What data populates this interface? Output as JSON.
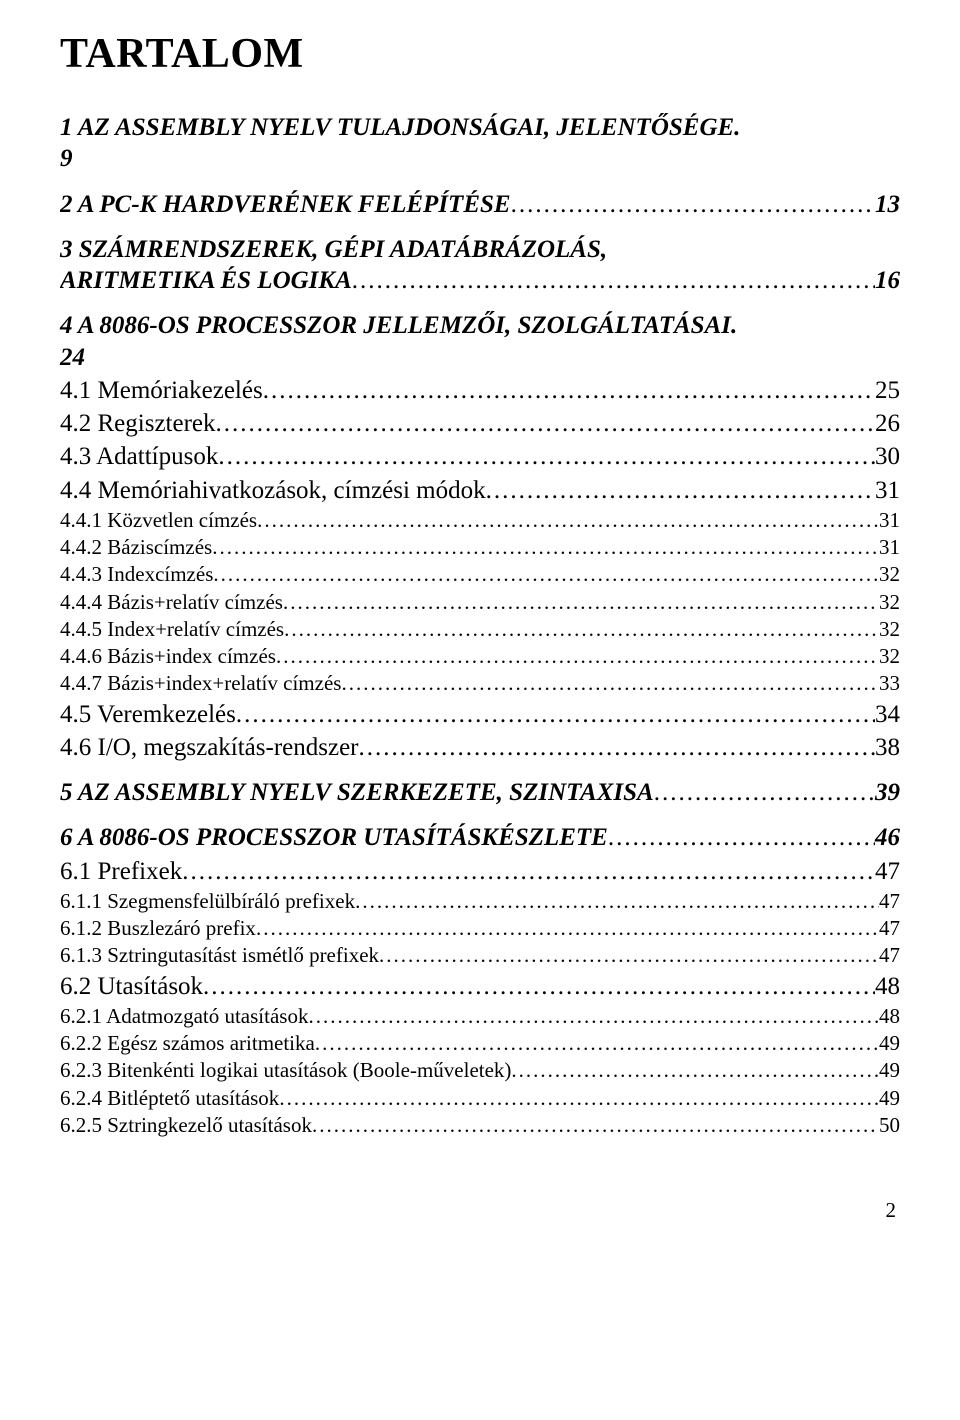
{
  "title": "TARTALOM",
  "page_number": "2",
  "toc": [
    {
      "level": 0,
      "label": "1 AZ ASSEMBLY NYELV TULAJDONSÁGAI, JELENTŐSÉGE.",
      "wrap_tail": "9",
      "page": "",
      "leader": false
    },
    {
      "level": 0,
      "label": "2 A PC-K HARDVERÉNEK FELÉPÍTÉSE",
      "page": "13",
      "leader": true
    },
    {
      "level": 0,
      "label": "3 SZÁMRENDSZEREK, GÉPI ADATÁBRÁZOLÁS,",
      "wrap_tail_label": "ARITMETIKA ÉS LOGIKA",
      "page": "16",
      "leader": true
    },
    {
      "level": 0,
      "label": "4 A 8086-OS PROCESSZOR JELLEMZŐI, SZOLGÁLTATÁSAI.",
      "wrap_tail": "24",
      "page": "",
      "leader": false
    },
    {
      "level": 1,
      "label": "4.1 Memóriakezelés",
      "page": "25",
      "leader": true
    },
    {
      "level": 1,
      "label": "4.2 Regiszterek",
      "page": " 26",
      "leader": true
    },
    {
      "level": 1,
      "label": "4.3 Adattípusok",
      "page": "30",
      "leader": true
    },
    {
      "level": 1,
      "label": "4.4 Memóriahivatkozások, címzési módok",
      "page": " 31",
      "leader": true
    },
    {
      "level": 2,
      "label": "4.4.1 Közvetlen címzés",
      "page": " 31",
      "leader": true
    },
    {
      "level": 2,
      "label": "4.4.2 Báziscímzés",
      "page": "31",
      "leader": true
    },
    {
      "level": 2,
      "label": "4.4.3 Indexcímzés",
      "page": "32",
      "leader": true
    },
    {
      "level": 2,
      "label": "4.4.4 Bázis+relatív címzés",
      "page": " 32",
      "leader": true
    },
    {
      "level": 2,
      "label": "4.4.5 Index+relatív címzés",
      "page": "32",
      "leader": true
    },
    {
      "level": 2,
      "label": "4.4.6 Bázis+index címzés",
      "page": "32",
      "leader": true
    },
    {
      "level": 2,
      "label": "4.4.7 Bázis+index+relatív címzés",
      "page": "33",
      "leader": true
    },
    {
      "level": 1,
      "label": "4.5 Veremkezelés",
      "page": "34",
      "leader": true
    },
    {
      "level": 1,
      "label": "4.6 I/O, megszakítás-rendszer",
      "page": " 38",
      "leader": true
    },
    {
      "level": 0,
      "label": "5 AZ ASSEMBLY NYELV SZERKEZETE, SZINTAXISA",
      "page": "39",
      "leader": true
    },
    {
      "level": 0,
      "label": "6 A 8086-OS PROCESSZOR UTASÍTÁSKÉSZLETE",
      "page": "46",
      "leader": true
    },
    {
      "level": 1,
      "label": "6.1 Prefixek",
      "page": "47",
      "leader": true
    },
    {
      "level": 2,
      "label": "6.1.1 Szegmensfelülbíráló prefixek",
      "page": " 47",
      "leader": true
    },
    {
      "level": 2,
      "label": "6.1.2 Buszlezáró prefix",
      "page": " 47",
      "leader": true
    },
    {
      "level": 2,
      "label": "6.1.3 Sztringutasítást ismétlő prefixek",
      "page": "47",
      "leader": true
    },
    {
      "level": 1,
      "label": "6.2 Utasítások",
      "page": " 48",
      "leader": true
    },
    {
      "level": 2,
      "label": "6.2.1 Adatmozgató utasítások",
      "page": "48",
      "leader": true
    },
    {
      "level": 2,
      "label": "6.2.2 Egész számos aritmetika",
      "page": " 49",
      "leader": true
    },
    {
      "level": 2,
      "label": "6.2.3 Bitenkénti logikai utasítások (Boole-műveletek)",
      "page": " 49",
      "leader": true
    },
    {
      "level": 2,
      "label": "6.2.4 Bitléptető utasítások",
      "page": "49",
      "leader": true
    },
    {
      "level": 2,
      "label": "6.2.5 Sztringkezelő utasítások",
      "page": " 50",
      "leader": true
    }
  ]
}
